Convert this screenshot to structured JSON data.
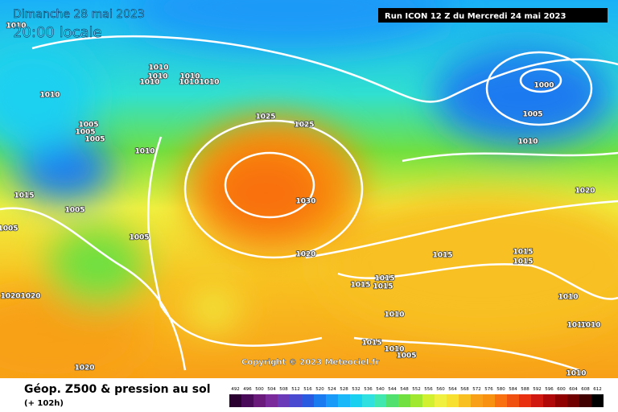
{
  "header": {
    "date": "Dimanche 28 mai 2023",
    "time": "20:00 locale",
    "run": "Run ICON 12 Z du Mercredi 24 mai 2023"
  },
  "copyright": "Copyright © 2023 Meteociel.fr",
  "footer": {
    "title": "Géop. Z500 & pression au sol",
    "lead": "(+ 102h)"
  },
  "isobar_labels": [
    "1010",
    "1010",
    "1010",
    "1010",
    "1010",
    "1010",
    "1010",
    "1005",
    "1005",
    "1005",
    "1010",
    "1010",
    "1005",
    "1005",
    "1005",
    "1015",
    "1025",
    "1025",
    "1030",
    "1020",
    "1000",
    "1005",
    "1010",
    "1020",
    "1015",
    "1015",
    "1015",
    "1015",
    "1015",
    "1015",
    "1010",
    "1010",
    "1010",
    "1010",
    "1015",
    "1010",
    "1005",
    "1010",
    "1020",
    "1020",
    "1020"
  ],
  "colorbar": {
    "levels": [
      492,
      496,
      500,
      504,
      508,
      512,
      516,
      520,
      524,
      528,
      532,
      536,
      540,
      544,
      548,
      552,
      556,
      560,
      564,
      568,
      572,
      576,
      580,
      584,
      588,
      592,
      596,
      600,
      604,
      608,
      612
    ],
    "colors": [
      "#2a0030",
      "#4a0a5a",
      "#6a1a7a",
      "#7a2a9a",
      "#6a3ab8",
      "#4a4ad0",
      "#2a5ae0",
      "#1a7af0",
      "#1a9af8",
      "#1ab8f8",
      "#1ad0f0",
      "#30e0e0",
      "#40e8b0",
      "#50e070",
      "#70e040",
      "#a0e830",
      "#d0f030",
      "#f0f040",
      "#f8e030",
      "#f8c020",
      "#f8a018",
      "#f89010",
      "#f87010",
      "#f05010",
      "#e83010",
      "#d01810",
      "#b00808",
      "#900000",
      "#700000",
      "#400000",
      "#000000"
    ]
  }
}
